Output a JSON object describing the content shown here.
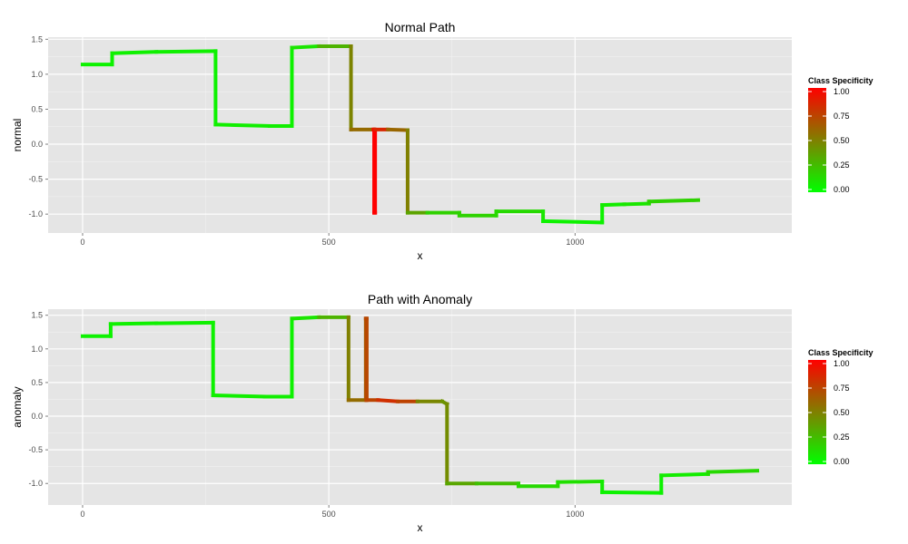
{
  "chart_data": [
    {
      "type": "line",
      "title": "Normal Path",
      "xlabel": "x",
      "ylabel": "normal",
      "xlim": [
        -70,
        1440
      ],
      "ylim": [
        -1.27,
        1.53
      ],
      "x_ticks": [
        0,
        500,
        1000
      ],
      "x_tick_labels": [
        "0",
        "500",
        "1000"
      ],
      "y_ticks": [
        1.5,
        1.0,
        0.5,
        0.0,
        -0.5,
        -1.0
      ],
      "y_tick_labels": [
        "1.5",
        "1.0",
        "0.5",
        "0.0",
        "-0.5",
        "-1.0"
      ],
      "grid": true,
      "color_scale": {
        "low": "#00ff00",
        "high": "#ff0000",
        "domain": [
          0,
          1
        ]
      },
      "legend": {
        "title": "Class Specificity",
        "labels": [
          "1.00",
          "0.75",
          "0.50",
          "0.25",
          "0.00"
        ],
        "values": [
          1.0,
          0.75,
          0.5,
          0.25,
          0.0
        ],
        "placement": "right"
      },
      "series": [
        {
          "points": [
            {
              "x": 0,
              "y": 1.14,
              "c": 0.05
            },
            {
              "x": 60,
              "y": 1.14,
              "c": 0.05
            },
            {
              "x": 60,
              "y": 1.3,
              "c": 0.05
            },
            {
              "x": 150,
              "y": 1.32,
              "c": 0.07
            },
            {
              "x": 270,
              "y": 1.33,
              "c": 0.05
            },
            {
              "x": 270,
              "y": 0.28,
              "c": 0.05
            },
            {
              "x": 380,
              "y": 0.26,
              "c": 0.08
            },
            {
              "x": 425,
              "y": 0.26,
              "c": 0.05
            },
            {
              "x": 425,
              "y": 1.38,
              "c": 0.05
            },
            {
              "x": 480,
              "y": 1.4,
              "c": 0.15
            },
            {
              "x": 545,
              "y": 1.4,
              "c": 0.45
            },
            {
              "x": 545,
              "y": 0.21,
              "c": 0.52
            },
            {
              "x": 590,
              "y": 0.21,
              "c": 0.65
            },
            {
              "x": 592,
              "y": 0.21,
              "c": 1.0
            },
            {
              "x": 592,
              "y": -0.98,
              "c": 1.0
            },
            {
              "x": 594,
              "y": -0.98,
              "c": 1.0
            },
            {
              "x": 594,
              "y": 0.21,
              "c": 1.0
            },
            {
              "x": 620,
              "y": 0.21,
              "c": 0.7
            },
            {
              "x": 660,
              "y": 0.2,
              "c": 0.5
            },
            {
              "x": 660,
              "y": -0.98,
              "c": 0.5
            },
            {
              "x": 700,
              "y": -0.98,
              "c": 0.22
            },
            {
              "x": 765,
              "y": -0.98,
              "c": 0.15
            },
            {
              "x": 765,
              "y": -1.02,
              "c": 0.2
            },
            {
              "x": 840,
              "y": -1.02,
              "c": 0.15
            },
            {
              "x": 840,
              "y": -0.96,
              "c": 0.15
            },
            {
              "x": 935,
              "y": -0.96,
              "c": 0.15
            },
            {
              "x": 935,
              "y": -1.1,
              "c": 0.05
            },
            {
              "x": 1055,
              "y": -1.12,
              "c": 0.05
            },
            {
              "x": 1055,
              "y": -0.87,
              "c": 0.05
            },
            {
              "x": 1100,
              "y": -0.86,
              "c": 0.1
            },
            {
              "x": 1150,
              "y": -0.85,
              "c": 0.1
            },
            {
              "x": 1150,
              "y": -0.82,
              "c": 0.15
            },
            {
              "x": 1250,
              "y": -0.8,
              "c": 0.2
            }
          ]
        }
      ]
    },
    {
      "type": "line",
      "title": "Path with Anomaly",
      "xlabel": "x",
      "ylabel": "anomaly",
      "xlim": [
        -70,
        1440
      ],
      "ylim": [
        -1.32,
        1.59
      ],
      "x_ticks": [
        0,
        500,
        1000
      ],
      "x_tick_labels": [
        "0",
        "500",
        "1000"
      ],
      "y_ticks": [
        1.5,
        1.0,
        0.5,
        0.0,
        -0.5,
        -1.0
      ],
      "y_tick_labels": [
        "1.5",
        "1.0",
        "0.5",
        "0.0",
        "-0.5",
        "-1.0"
      ],
      "grid": true,
      "color_scale": {
        "low": "#00ff00",
        "high": "#ff0000",
        "domain": [
          0,
          1
        ]
      },
      "legend": {
        "title": "Class Specificity",
        "labels": [
          "1.00",
          "0.75",
          "0.50",
          "0.25",
          "0.00"
        ],
        "values": [
          1.0,
          0.75,
          0.5,
          0.25,
          0.0
        ],
        "placement": "right"
      },
      "series": [
        {
          "points": [
            {
              "x": 0,
              "y": 1.19,
              "c": 0.05
            },
            {
              "x": 57,
              "y": 1.19,
              "c": 0.05
            },
            {
              "x": 57,
              "y": 1.37,
              "c": 0.05
            },
            {
              "x": 150,
              "y": 1.38,
              "c": 0.07
            },
            {
              "x": 265,
              "y": 1.39,
              "c": 0.05
            },
            {
              "x": 265,
              "y": 0.31,
              "c": 0.05
            },
            {
              "x": 370,
              "y": 0.29,
              "c": 0.08
            },
            {
              "x": 425,
              "y": 0.29,
              "c": 0.05
            },
            {
              "x": 425,
              "y": 1.45,
              "c": 0.05
            },
            {
              "x": 480,
              "y": 1.47,
              "c": 0.15
            },
            {
              "x": 540,
              "y": 1.47,
              "c": 0.45
            },
            {
              "x": 540,
              "y": 0.24,
              "c": 0.55
            },
            {
              "x": 575,
              "y": 0.24,
              "c": 0.6
            },
            {
              "x": 575,
              "y": 1.45,
              "c": 0.72
            },
            {
              "x": 577,
              "y": 1.45,
              "c": 0.72
            },
            {
              "x": 577,
              "y": 0.24,
              "c": 0.72
            },
            {
              "x": 600,
              "y": 0.24,
              "c": 0.75
            },
            {
              "x": 640,
              "y": 0.22,
              "c": 0.88
            },
            {
              "x": 680,
              "y": 0.22,
              "c": 0.6
            },
            {
              "x": 730,
              "y": 0.22,
              "c": 0.35
            },
            {
              "x": 740,
              "y": 0.18,
              "c": 0.5
            },
            {
              "x": 740,
              "y": -1.0,
              "c": 0.4
            },
            {
              "x": 800,
              "y": -1.0,
              "c": 0.3
            },
            {
              "x": 885,
              "y": -1.0,
              "c": 0.2
            },
            {
              "x": 885,
              "y": -1.04,
              "c": 0.15
            },
            {
              "x": 965,
              "y": -1.04,
              "c": 0.15
            },
            {
              "x": 965,
              "y": -0.98,
              "c": 0.15
            },
            {
              "x": 1055,
              "y": -0.97,
              "c": 0.1
            },
            {
              "x": 1055,
              "y": -1.13,
              "c": 0.05
            },
            {
              "x": 1175,
              "y": -1.14,
              "c": 0.05
            },
            {
              "x": 1175,
              "y": -0.88,
              "c": 0.05
            },
            {
              "x": 1270,
              "y": -0.86,
              "c": 0.1
            },
            {
              "x": 1270,
              "y": -0.83,
              "c": 0.15
            },
            {
              "x": 1370,
              "y": -0.81,
              "c": 0.15
            }
          ]
        }
      ]
    }
  ]
}
